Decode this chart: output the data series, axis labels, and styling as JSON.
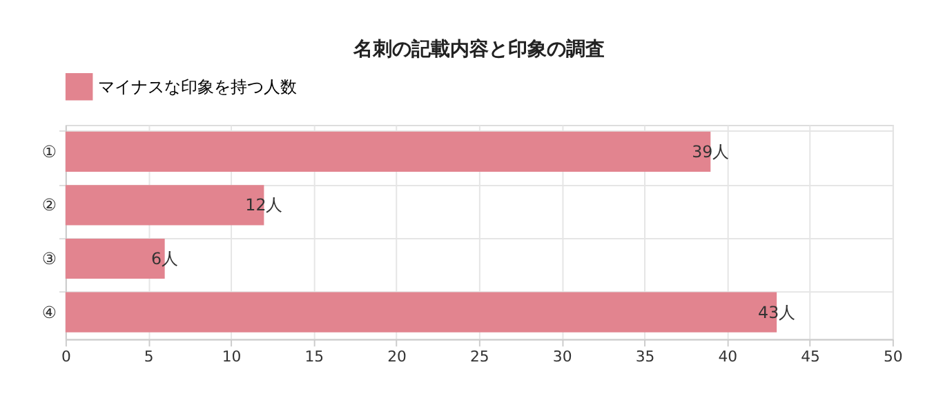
{
  "chart_data": {
    "type": "bar",
    "orientation": "horizontal",
    "title": "名刺の記載内容と印象の調査",
    "categories": [
      "①",
      "②",
      "③",
      "④"
    ],
    "series": [
      {
        "name": "マイナスな印象を持つ人数",
        "color": "#e2848f",
        "values": [
          39,
          12,
          6,
          43
        ],
        "value_labels": [
          "39人",
          "12人",
          "6人",
          "43人"
        ]
      }
    ],
    "xlim": [
      0,
      50
    ],
    "xticks": [
      0,
      5,
      10,
      15,
      20,
      25,
      30,
      35,
      40,
      45,
      50
    ],
    "grid": true,
    "legend": "top"
  }
}
